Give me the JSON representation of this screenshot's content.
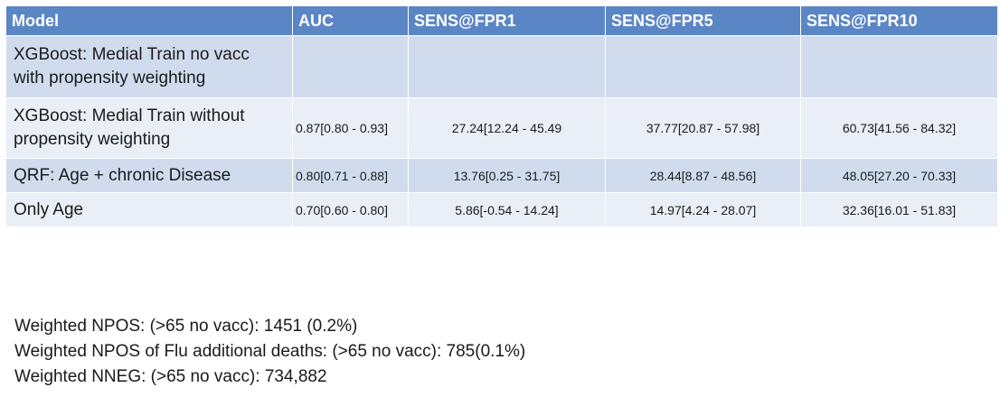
{
  "table": {
    "headers": [
      "Model",
      "AUC",
      "SENS@FPR1",
      "SENS@FPR5",
      "SENS@FPR10"
    ],
    "rows": [
      {
        "model_line1": "XGBoost: Medial Train no vacc",
        "model_line2": "with propensity weighting",
        "auc": "",
        "sens1": "",
        "sens5": "",
        "sens10": ""
      },
      {
        "model_line1": "XGBoost: Medial Train without",
        "model_line2": "propensity weighting",
        "auc": "0.87[0.80 - 0.93]",
        "sens1": "27.24[12.24 - 45.49",
        "sens5": "37.77[20.87 - 57.98]",
        "sens10": "60.73[41.56 - 84.32]"
      },
      {
        "model_line1": "QRF: Age + chronic Disease",
        "model_line2": "",
        "auc": "0.80[0.71 - 0.88]",
        "sens1": "13.76[0.25 - 31.75]",
        "sens5": "28.44[8.87 - 48.56]",
        "sens10": "48.05[27.20 - 70.33]"
      },
      {
        "model_line1": "Only Age",
        "model_line2": "",
        "auc": "0.70[0.60 - 0.80]",
        "sens1": "5.86[-0.54 - 14.24]",
        "sens5": "14.97[4.24 - 28.07]",
        "sens10": "32.36[16.01 - 51.83]"
      }
    ]
  },
  "notes": [
    "Weighted NPOS: (>65 no vacc): 1451 (0.2%)",
    "Weighted NPOS of Flu additional deaths: (>65 no vacc): 785(0.1%)",
    "Weighted NNEG: (>65 no vacc): 734,882"
  ],
  "colors": {
    "header_bg": "#5b86c5",
    "row_dark": "#d0dcee",
    "row_light": "#e9eef7"
  }
}
